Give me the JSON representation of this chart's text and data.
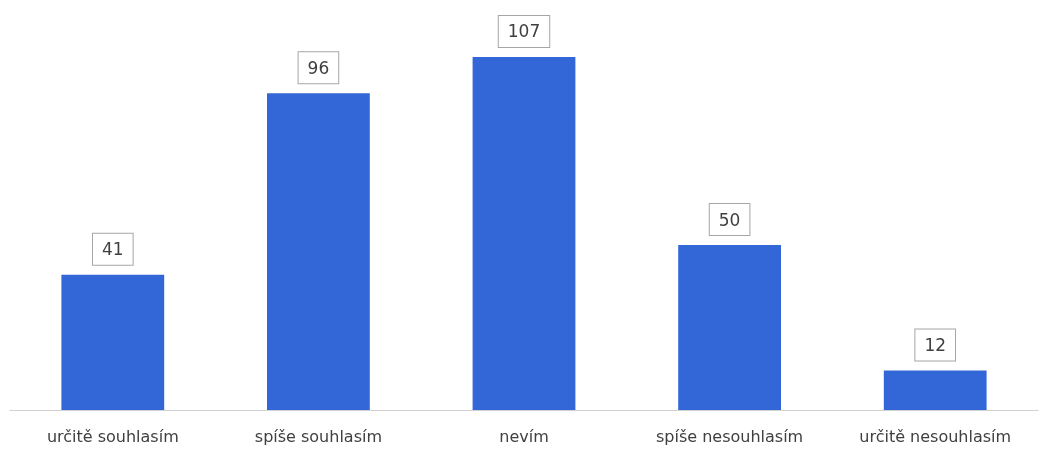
{
  "chart_data": {
    "type": "bar",
    "categories": [
      "určitě souhlasím",
      "spíše souhlasím",
      "nevím",
      "spíše nesouhlasím",
      "určitě nesouhlasím"
    ],
    "values": [
      41,
      96,
      107,
      50,
      12
    ],
    "color": "#3366d6",
    "data_labels": true
  }
}
